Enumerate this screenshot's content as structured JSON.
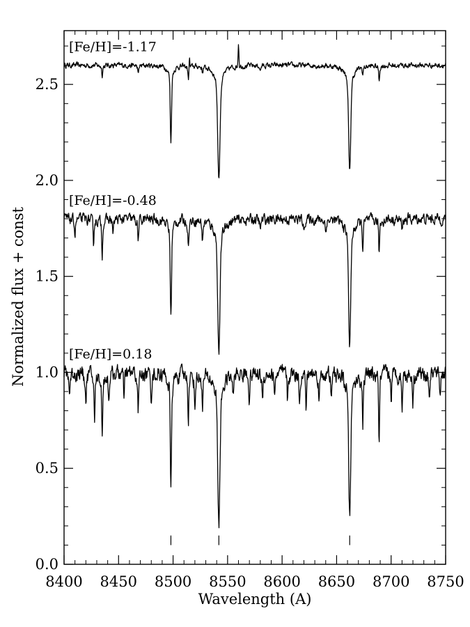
{
  "chart_data": {
    "type": "line",
    "title": "",
    "xlabel": "Wavelength (A)",
    "ylabel": "Normalized flux + const",
    "xlim": [
      8400,
      8750
    ],
    "ylim": [
      0.0,
      2.78
    ],
    "xticks": [
      8400,
      8450,
      8500,
      8550,
      8600,
      8650,
      8700,
      8750
    ],
    "xtick_labels": [
      "8400",
      "8450",
      "8500",
      "8550",
      "8600",
      "8650",
      "8700",
      "8750"
    ],
    "yticks": [
      0.0,
      0.5,
      1.0,
      1.5,
      2.0,
      2.5
    ],
    "ytick_labels": [
      "0.0",
      "0.5",
      "1.0",
      "1.5",
      "2.0",
      "2.5"
    ],
    "x_minor_step": 10,
    "y_minor_step": 0.1,
    "grid": false,
    "legend": "none",
    "line_color": "#000000",
    "line_markers": [
      8498,
      8542,
      8662
    ],
    "series": [
      {
        "label": "[Fe/H]=-1.17",
        "continuum": 2.6,
        "noise": 0.01,
        "lines": [
          {
            "x": 8498,
            "y": 2.2,
            "w": 0.55
          },
          {
            "x": 8542,
            "y": 2.01,
            "w": 1.0
          },
          {
            "x": 8662,
            "y": 2.04,
            "w": 0.9
          },
          {
            "x": 8435,
            "y": 2.55,
            "w": 0.4
          },
          {
            "x": 8468,
            "y": 2.55,
            "w": 0.4
          },
          {
            "x": 8514,
            "y": 2.53,
            "w": 0.4
          },
          {
            "x": 8689,
            "y": 2.52,
            "w": 0.4
          },
          {
            "x": 8527,
            "y": 2.57,
            "w": 0.4
          },
          {
            "x": 8674,
            "y": 2.56,
            "w": 0.4
          },
          {
            "x": 8580,
            "y": 2.57,
            "w": 0.4
          }
        ],
        "emission": [
          {
            "x": 8560,
            "y": 2.72,
            "w": 0.4
          },
          {
            "x": 8515,
            "y": 2.65,
            "w": 0.3
          }
        ]
      },
      {
        "label": "[Fe/H]=-0.48",
        "continuum": 1.8,
        "noise": 0.02,
        "lines": [
          {
            "x": 8498,
            "y": 1.29,
            "w": 0.55
          },
          {
            "x": 8542,
            "y": 1.11,
            "w": 1.0
          },
          {
            "x": 8662,
            "y": 1.14,
            "w": 0.9
          },
          {
            "x": 8427,
            "y": 1.67,
            "w": 0.4
          },
          {
            "x": 8435,
            "y": 1.62,
            "w": 0.4
          },
          {
            "x": 8468,
            "y": 1.68,
            "w": 0.4
          },
          {
            "x": 8514,
            "y": 1.65,
            "w": 0.4
          },
          {
            "x": 8527,
            "y": 1.69,
            "w": 0.4
          },
          {
            "x": 8674,
            "y": 1.66,
            "w": 0.4
          },
          {
            "x": 8689,
            "y": 1.62,
            "w": 0.4
          },
          {
            "x": 8410,
            "y": 1.72,
            "w": 0.4
          },
          {
            "x": 8445,
            "y": 1.72,
            "w": 0.4
          },
          {
            "x": 8580,
            "y": 1.73,
            "w": 0.4
          },
          {
            "x": 8620,
            "y": 1.73,
            "w": 0.4
          },
          {
            "x": 8640,
            "y": 1.73,
            "w": 0.4
          },
          {
            "x": 8710,
            "y": 1.73,
            "w": 0.4
          }
        ],
        "emission": []
      },
      {
        "label": "[Fe/H]=0.18",
        "continuum": 1.0,
        "noise": 0.03,
        "lines": [
          {
            "x": 8498,
            "y": 0.39,
            "w": 0.55
          },
          {
            "x": 8542,
            "y": 0.22,
            "w": 1.0
          },
          {
            "x": 8662,
            "y": 0.26,
            "w": 0.9
          },
          {
            "x": 8428,
            "y": 0.73,
            "w": 0.4
          },
          {
            "x": 8435,
            "y": 0.65,
            "w": 0.4
          },
          {
            "x": 8468,
            "y": 0.78,
            "w": 0.4
          },
          {
            "x": 8514,
            "y": 0.77,
            "w": 0.4
          },
          {
            "x": 8527,
            "y": 0.8,
            "w": 0.4
          },
          {
            "x": 8674,
            "y": 0.73,
            "w": 0.4
          },
          {
            "x": 8689,
            "y": 0.64,
            "w": 0.4
          },
          {
            "x": 8405,
            "y": 0.88,
            "w": 0.4
          },
          {
            "x": 8420,
            "y": 0.84,
            "w": 0.4
          },
          {
            "x": 8441,
            "y": 0.85,
            "w": 0.4
          },
          {
            "x": 8455,
            "y": 0.86,
            "w": 0.4
          },
          {
            "x": 8480,
            "y": 0.87,
            "w": 0.4
          },
          {
            "x": 8520,
            "y": 0.82,
            "w": 0.4
          },
          {
            "x": 8555,
            "y": 0.88,
            "w": 0.4
          },
          {
            "x": 8570,
            "y": 0.86,
            "w": 0.4
          },
          {
            "x": 8582,
            "y": 0.84,
            "w": 0.4
          },
          {
            "x": 8593,
            "y": 0.86,
            "w": 0.4
          },
          {
            "x": 8605,
            "y": 0.84,
            "w": 0.4
          },
          {
            "x": 8616,
            "y": 0.86,
            "w": 0.4
          },
          {
            "x": 8622,
            "y": 0.82,
            "w": 0.4
          },
          {
            "x": 8634,
            "y": 0.85,
            "w": 0.4
          },
          {
            "x": 8645,
            "y": 0.85,
            "w": 0.4
          },
          {
            "x": 8700,
            "y": 0.86,
            "w": 0.4
          },
          {
            "x": 8710,
            "y": 0.82,
            "w": 0.4
          },
          {
            "x": 8720,
            "y": 0.85,
            "w": 0.4
          },
          {
            "x": 8735,
            "y": 0.86,
            "w": 0.4
          },
          {
            "x": 8745,
            "y": 0.88,
            "w": 0.4
          }
        ],
        "emission": []
      }
    ]
  }
}
